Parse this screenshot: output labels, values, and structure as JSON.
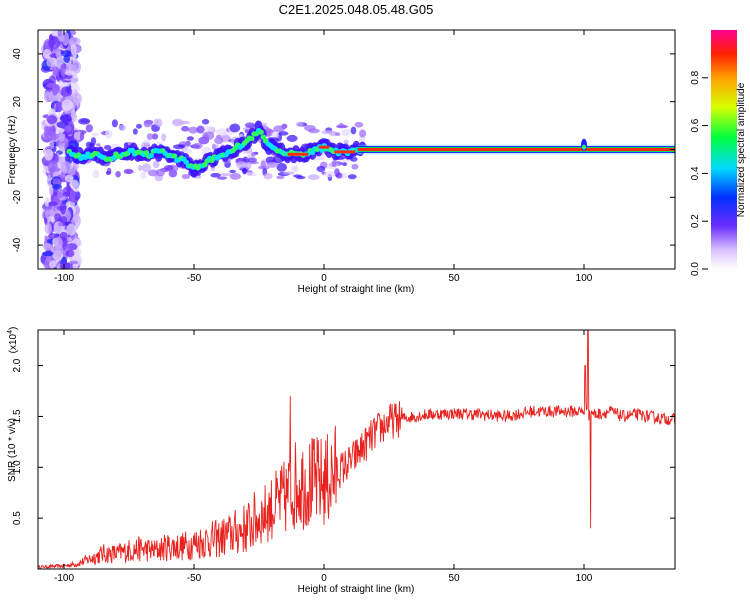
{
  "figure_title": "C2E1.2025.048.05.48.G05",
  "chart_data": [
    {
      "type": "heatmap",
      "title": "C2E1.2025.048.05.48.G05",
      "xlabel": "Height of straight line (km)",
      "ylabel": "Frequency (Hz)",
      "xlim": [
        -110,
        135
      ],
      "ylim": [
        -50,
        50
      ],
      "xticks": [
        -100,
        -50,
        0,
        50,
        100
      ],
      "yticks": [
        -40,
        -20,
        0,
        20,
        40
      ],
      "xtick_labels": [
        "-100",
        "-50",
        "0",
        "50",
        "100"
      ],
      "ytick_labels": [
        "-40",
        "-20",
        "0",
        "20",
        "40"
      ],
      "colorbar": {
        "label": "Normalized spectral amplitude",
        "range": [
          0,
          1
        ],
        "ticks": [
          0.0,
          0.2,
          0.4,
          0.6,
          0.8
        ],
        "tick_labels": [
          "0.0",
          "0.2",
          "0.4",
          "0.6",
          "0.8"
        ],
        "colors": [
          "#ffffff",
          "#b080ff",
          "#2000ff",
          "#00e0ff",
          "#00ff60",
          "#ffff00",
          "#ff2000",
          "#ff00a0"
        ]
      },
      "ridge": {
        "x": [
          -98,
          -93,
          -88,
          -83,
          -78,
          -73,
          -68,
          -63,
          -58,
          -53,
          -50,
          -45,
          -40,
          -35,
          -30,
          -27,
          -25,
          -22,
          -18,
          -15,
          -10,
          -5,
          0,
          5,
          10,
          13,
          20,
          40,
          60,
          80,
          98,
          100,
          102,
          120,
          135
        ],
        "y": [
          -1,
          -3,
          -2,
          -4,
          -2,
          -1,
          -2,
          -1,
          -3,
          -5,
          -8,
          -5,
          -3,
          0,
          3,
          6,
          9,
          2,
          0,
          -2,
          -2,
          -1,
          1,
          -1,
          -1,
          0,
          0,
          0,
          0,
          0,
          0,
          1,
          0,
          0,
          0
        ]
      }
    },
    {
      "type": "line",
      "xlabel": "Height of straight line (km)",
      "ylabel": "SNR (10 * v/v)",
      "y_multiplier": "(x10",
      "y_multiplier_exp": "4",
      "y_multiplier_close": ")",
      "xlim": [
        -110,
        135
      ],
      "ylim": [
        0,
        2.35
      ],
      "xticks": [
        -100,
        -50,
        0,
        50,
        100
      ],
      "yticks": [
        0.5,
        1.0,
        1.5,
        2.0
      ],
      "xtick_labels": [
        "-100",
        "-50",
        "0",
        "50",
        "100"
      ],
      "ytick_labels": [
        "0.5",
        "1.0",
        "1.5",
        "2.0"
      ],
      "series": [
        {
          "color": "#e8231f",
          "x": [
            -110,
            -100,
            -95,
            -90,
            -85,
            -80,
            -75,
            -70,
            -65,
            -60,
            -55,
            -50,
            -45,
            -40,
            -35,
            -30,
            -25,
            -20,
            -15,
            -12,
            -10,
            -5,
            0,
            5,
            10,
            15,
            20,
            25,
            30,
            35,
            40,
            50,
            60,
            70,
            80,
            90,
            95,
            100,
            101,
            102,
            103,
            104,
            105,
            110,
            115,
            120,
            125,
            130,
            135
          ],
          "values": [
            0.02,
            0.03,
            0.05,
            0.1,
            0.15,
            0.15,
            0.18,
            0.2,
            0.18,
            0.22,
            0.22,
            0.25,
            0.28,
            0.3,
            0.35,
            0.4,
            0.5,
            0.6,
            0.7,
            0.8,
            0.85,
            0.85,
            0.85,
            0.95,
            1.05,
            1.2,
            1.35,
            1.45,
            1.48,
            1.5,
            1.52,
            1.53,
            1.52,
            1.5,
            1.55,
            1.55,
            1.55,
            1.55,
            1.6,
            1.5,
            1.55,
            1.52,
            1.52,
            1.55,
            1.5,
            1.52,
            1.5,
            1.48,
            1.47
          ],
          "spikes": [
            {
              "x": -13,
              "value": 1.7
            },
            {
              "x": 101.5,
              "value": 2.35
            },
            {
              "x": 102.5,
              "value": 0.4
            },
            {
              "x": 100.5,
              "value": 2.0
            }
          ]
        }
      ]
    }
  ]
}
